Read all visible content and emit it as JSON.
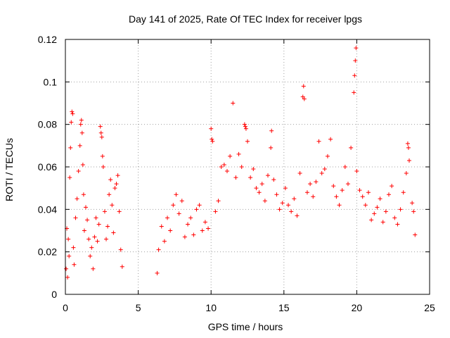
{
  "chart_data": {
    "type": "scatter",
    "title": "Day 141 of 2025, Rate Of TEC Index for receiver lpgs",
    "xlabel": "GPS time / hours",
    "ylabel": "ROTI / TECUs",
    "xlim": [
      0,
      25
    ],
    "ylim": [
      0,
      0.12
    ],
    "x_ticks": [
      "0",
      "5",
      "10",
      "15",
      "20",
      "25"
    ],
    "y_ticks": [
      "0",
      "0.02",
      "0.04",
      "0.06",
      "0.08",
      "0.1",
      "0.12"
    ],
    "grid": true,
    "marker": "plus",
    "marker_color": "#ff0000",
    "data_gap_hours": [
      4.0,
      6.2
    ],
    "series": [
      {
        "name": "ROTI",
        "points": [
          [
            0.05,
            0.012
          ],
          [
            0.1,
            0.031
          ],
          [
            0.15,
            0.008
          ],
          [
            0.2,
            0.026
          ],
          [
            0.25,
            0.018
          ],
          [
            0.3,
            0.055
          ],
          [
            0.35,
            0.069
          ],
          [
            0.4,
            0.081
          ],
          [
            0.45,
            0.086
          ],
          [
            0.5,
            0.085
          ],
          [
            0.55,
            0.022
          ],
          [
            0.6,
            0.014
          ],
          [
            0.7,
            0.036
          ],
          [
            0.8,
            0.045
          ],
          [
            0.9,
            0.058
          ],
          [
            1.0,
            0.07
          ],
          [
            1.05,
            0.08
          ],
          [
            1.1,
            0.082
          ],
          [
            1.15,
            0.076
          ],
          [
            1.2,
            0.061
          ],
          [
            1.25,
            0.047
          ],
          [
            1.3,
            0.03
          ],
          [
            1.4,
            0.041
          ],
          [
            1.5,
            0.035
          ],
          [
            1.6,
            0.026
          ],
          [
            1.7,
            0.018
          ],
          [
            1.8,
            0.022
          ],
          [
            1.9,
            0.012
          ],
          [
            2.0,
            0.027
          ],
          [
            2.1,
            0.036
          ],
          [
            2.2,
            0.025
          ],
          [
            2.3,
            0.033
          ],
          [
            2.4,
            0.079
          ],
          [
            2.45,
            0.076
          ],
          [
            2.5,
            0.074
          ],
          [
            2.55,
            0.065
          ],
          [
            2.6,
            0.06
          ],
          [
            2.7,
            0.039
          ],
          [
            2.8,
            0.026
          ],
          [
            2.9,
            0.032
          ],
          [
            3.0,
            0.047
          ],
          [
            3.1,
            0.054
          ],
          [
            3.2,
            0.042
          ],
          [
            3.3,
            0.029
          ],
          [
            3.4,
            0.05
          ],
          [
            3.5,
            0.052
          ],
          [
            3.6,
            0.056
          ],
          [
            3.7,
            0.039
          ],
          [
            3.8,
            0.021
          ],
          [
            3.9,
            0.013
          ],
          [
            6.3,
            0.01
          ],
          [
            6.4,
            0.021
          ],
          [
            6.6,
            0.032
          ],
          [
            6.8,
            0.025
          ],
          [
            7.0,
            0.036
          ],
          [
            7.2,
            0.03
          ],
          [
            7.4,
            0.042
          ],
          [
            7.6,
            0.047
          ],
          [
            7.8,
            0.038
          ],
          [
            8.0,
            0.044
          ],
          [
            8.2,
            0.027
          ],
          [
            8.4,
            0.033
          ],
          [
            8.6,
            0.036
          ],
          [
            8.8,
            0.028
          ],
          [
            9.0,
            0.04
          ],
          [
            9.2,
            0.042
          ],
          [
            9.4,
            0.03
          ],
          [
            9.6,
            0.034
          ],
          [
            9.8,
            0.031
          ],
          [
            10.0,
            0.078
          ],
          [
            10.05,
            0.073
          ],
          [
            10.1,
            0.072
          ],
          [
            10.3,
            0.039
          ],
          [
            10.5,
            0.044
          ],
          [
            10.7,
            0.06
          ],
          [
            10.9,
            0.061
          ],
          [
            11.1,
            0.058
          ],
          [
            11.3,
            0.065
          ],
          [
            11.5,
            0.09
          ],
          [
            11.7,
            0.055
          ],
          [
            11.9,
            0.066
          ],
          [
            12.1,
            0.06
          ],
          [
            12.3,
            0.08
          ],
          [
            12.35,
            0.079
          ],
          [
            12.4,
            0.078
          ],
          [
            12.5,
            0.072
          ],
          [
            12.7,
            0.055
          ],
          [
            12.9,
            0.059
          ],
          [
            13.1,
            0.05
          ],
          [
            13.3,
            0.048
          ],
          [
            13.5,
            0.052
          ],
          [
            13.7,
            0.044
          ],
          [
            13.9,
            0.056
          ],
          [
            14.1,
            0.069
          ],
          [
            14.15,
            0.077
          ],
          [
            14.3,
            0.054
          ],
          [
            14.5,
            0.047
          ],
          [
            14.7,
            0.04
          ],
          [
            14.9,
            0.043
          ],
          [
            15.1,
            0.05
          ],
          [
            15.3,
            0.042
          ],
          [
            15.5,
            0.039
          ],
          [
            15.7,
            0.045
          ],
          [
            15.9,
            0.037
          ],
          [
            16.1,
            0.057
          ],
          [
            16.3,
            0.093
          ],
          [
            16.35,
            0.098
          ],
          [
            16.4,
            0.092
          ],
          [
            16.6,
            0.048
          ],
          [
            16.8,
            0.052
          ],
          [
            17.0,
            0.046
          ],
          [
            17.2,
            0.053
          ],
          [
            17.4,
            0.072
          ],
          [
            17.6,
            0.057
          ],
          [
            17.8,
            0.059
          ],
          [
            18.0,
            0.065
          ],
          [
            18.2,
            0.073
          ],
          [
            18.4,
            0.051
          ],
          [
            18.6,
            0.046
          ],
          [
            18.8,
            0.042
          ],
          [
            19.0,
            0.049
          ],
          [
            19.2,
            0.06
          ],
          [
            19.4,
            0.052
          ],
          [
            19.6,
            0.069
          ],
          [
            19.8,
            0.095
          ],
          [
            19.85,
            0.103
          ],
          [
            19.9,
            0.11
          ],
          [
            19.95,
            0.116
          ],
          [
            20.0,
            0.058
          ],
          [
            20.2,
            0.049
          ],
          [
            20.4,
            0.046
          ],
          [
            20.6,
            0.042
          ],
          [
            20.8,
            0.048
          ],
          [
            21.0,
            0.035
          ],
          [
            21.2,
            0.038
          ],
          [
            21.4,
            0.041
          ],
          [
            21.6,
            0.045
          ],
          [
            21.8,
            0.034
          ],
          [
            22.0,
            0.039
          ],
          [
            22.2,
            0.047
          ],
          [
            22.4,
            0.051
          ],
          [
            22.6,
            0.036
          ],
          [
            22.8,
            0.033
          ],
          [
            23.0,
            0.04
          ],
          [
            23.2,
            0.048
          ],
          [
            23.4,
            0.057
          ],
          [
            23.5,
            0.071
          ],
          [
            23.55,
            0.069
          ],
          [
            23.6,
            0.063
          ],
          [
            23.8,
            0.043
          ],
          [
            23.9,
            0.039
          ],
          [
            24.0,
            0.028
          ]
        ]
      }
    ]
  }
}
